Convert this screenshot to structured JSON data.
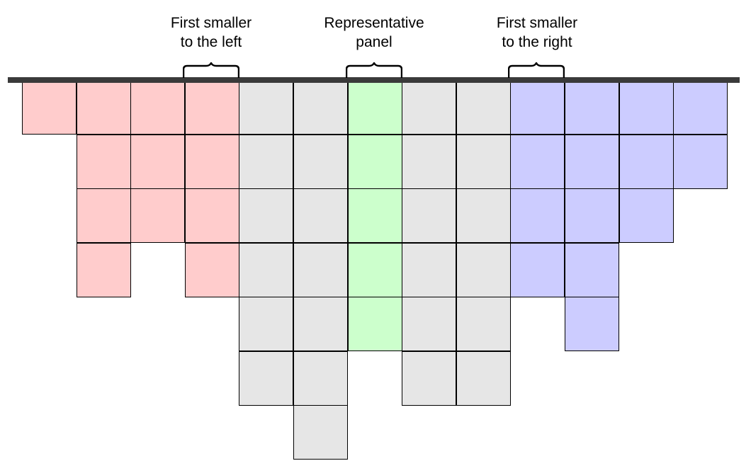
{
  "colors": {
    "left": "#ffcccc",
    "middle": "#e6e6e6",
    "representative": "#ccffcc",
    "right": "#ccccff",
    "bar": "#3a3a3a"
  },
  "labels": {
    "left": "First smaller\nto the left",
    "representative": "Representative\npanel",
    "right": "First smaller\nto the right"
  },
  "panels": [
    {
      "height": 1,
      "group": "left"
    },
    {
      "height": 4,
      "group": "left"
    },
    {
      "height": 3,
      "group": "left"
    },
    {
      "height": 4,
      "group": "left"
    },
    {
      "height": 6,
      "group": "middle"
    },
    {
      "height": 7,
      "group": "middle"
    },
    {
      "height": 5,
      "group": "representative"
    },
    {
      "height": 6,
      "group": "middle"
    },
    {
      "height": 6,
      "group": "middle"
    },
    {
      "height": 4,
      "group": "right"
    },
    {
      "height": 5,
      "group": "right"
    },
    {
      "height": 3,
      "group": "right"
    },
    {
      "height": 2,
      "group": "right"
    }
  ]
}
